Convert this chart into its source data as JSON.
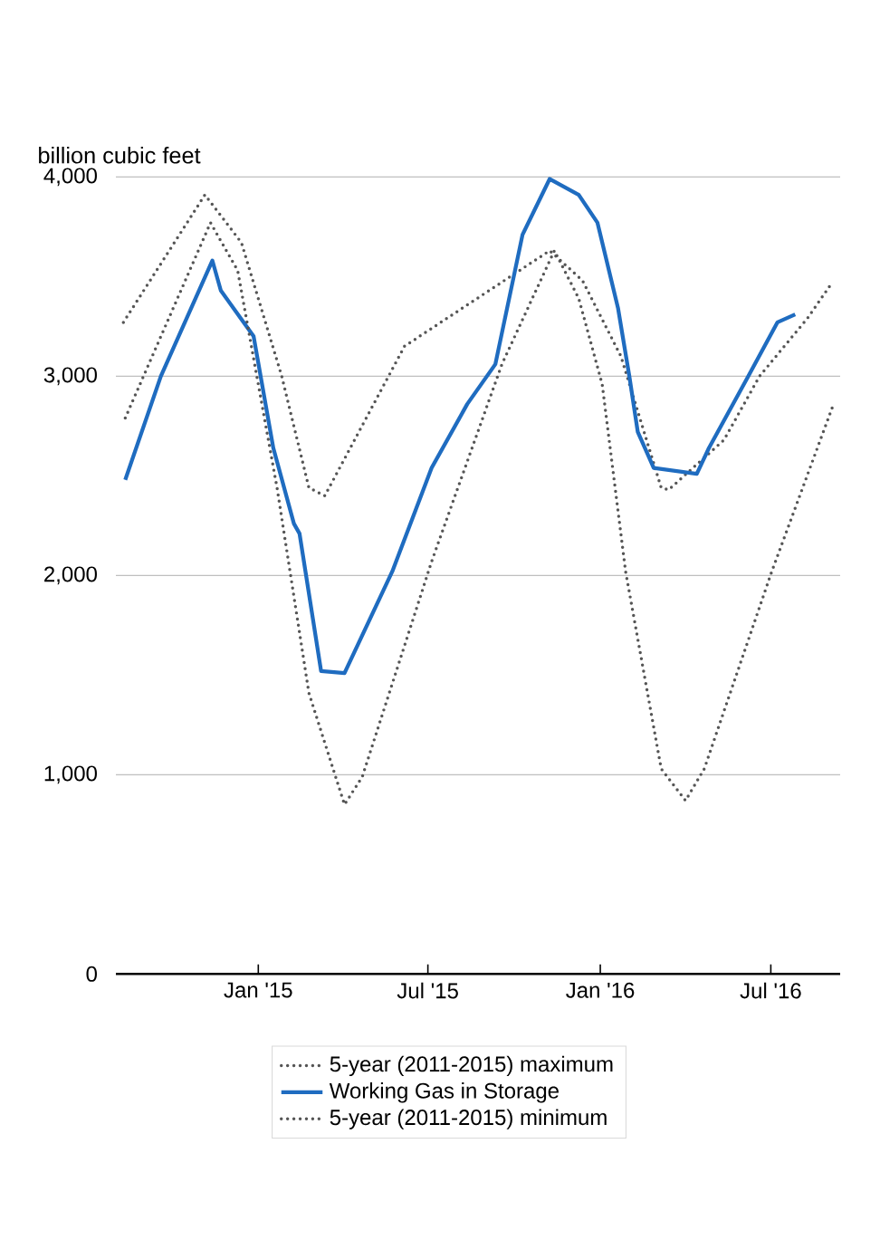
{
  "chart_data": {
    "type": "line",
    "ylabel": "billion cubic feet",
    "xlim": [
      "2014-08-02",
      "2016-09-13"
    ],
    "xticks": [
      {
        "value": "2015-01-01",
        "label": "Jan '15"
      },
      {
        "value": "2015-07-01",
        "label": "Jul '15"
      },
      {
        "value": "2016-01-01",
        "label": "Jan '16"
      },
      {
        "value": "2016-07-01",
        "label": "Jul '16"
      }
    ],
    "ylim": [
      0,
      4000
    ],
    "yticks": [
      {
        "value": 0,
        "label": "0"
      },
      {
        "value": 1000,
        "label": "1,000"
      },
      {
        "value": 2000,
        "label": "2,000"
      },
      {
        "value": 3000,
        "label": "3,000"
      },
      {
        "value": 4000,
        "label": "4,000"
      }
    ],
    "grid": "y",
    "legend": "bottom",
    "series": [
      {
        "name": "5-year (2011-2015) maximum",
        "color": "#555555",
        "line_style": "dotted",
        "x": [
          "2014-08-10",
          "2014-11-05",
          "2014-12-14",
          "2015-01-26",
          "2015-02-24",
          "2015-03-13",
          "2015-06-06",
          "2015-11-08",
          "2015-12-13",
          "2016-01-23",
          "2016-03-06",
          "2016-03-14",
          "2016-05-12",
          "2016-06-19",
          "2016-08-09",
          "2016-09-03"
        ],
        "values": [
          3270,
          3910,
          3670,
          3000,
          2440,
          2400,
          3150,
          3630,
          3480,
          3100,
          2440,
          2430,
          2680,
          3000,
          3290,
          3460
        ]
      },
      {
        "name": "Working Gas in Storage",
        "color": "#1f6cc0",
        "line_style": "solid",
        "x": [
          "2014-08-12",
          "2014-09-19",
          "2014-11-13",
          "2014-11-22",
          "2014-12-27",
          "2015-01-17",
          "2015-02-08",
          "2015-02-14",
          "2015-03-09",
          "2015-04-03",
          "2015-05-24",
          "2015-07-05",
          "2015-08-12",
          "2015-09-11",
          "2015-10-10",
          "2015-11-08",
          "2015-12-09",
          "2015-12-29",
          "2016-01-20",
          "2016-02-01",
          "2016-02-10",
          "2016-02-27",
          "2016-04-13",
          "2016-04-26",
          "2016-06-07",
          "2016-07-08",
          "2016-07-27"
        ],
        "values": [
          2480,
          3000,
          3580,
          3430,
          3200,
          2640,
          2260,
          2210,
          1520,
          1510,
          2020,
          2540,
          2860,
          3060,
          3710,
          3990,
          3910,
          3770,
          3340,
          3000,
          2720,
          2540,
          2510,
          2640,
          3000,
          3270,
          3310
        ]
      },
      {
        "name": "5-year (2011-2015) minimum",
        "color": "#555555",
        "line_style": "dotted",
        "x": [
          "2014-08-12",
          "2014-11-11",
          "2014-12-10",
          "2015-01-21",
          "2015-02-24",
          "2015-04-03",
          "2015-04-22",
          "2015-07-05",
          "2015-09-18",
          "2015-11-13",
          "2015-12-09",
          "2016-01-03",
          "2016-01-28",
          "2016-03-06",
          "2016-04-01",
          "2016-04-21",
          "2016-07-02",
          "2016-09-06"
        ],
        "values": [
          2790,
          3770,
          3530,
          2440,
          1410,
          850,
          990,
          2070,
          3060,
          3630,
          3390,
          2960,
          2020,
          1030,
          870,
          1030,
          2020,
          2860
        ]
      }
    ]
  }
}
